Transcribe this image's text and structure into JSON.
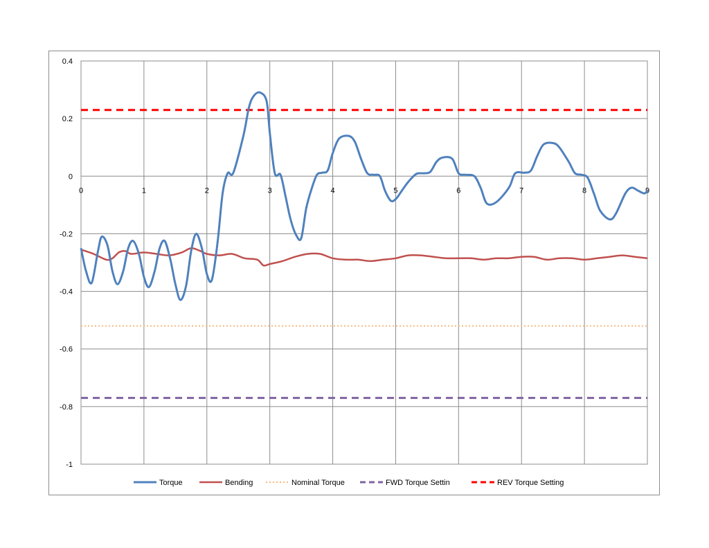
{
  "chart_data": {
    "type": "line",
    "title": "",
    "xlabel": "",
    "ylabel": "",
    "xlim": [
      0,
      9
    ],
    "ylim": [
      -1,
      0.4
    ],
    "x_ticks": [
      "0",
      "1",
      "2",
      "3",
      "4",
      "5",
      "6",
      "7",
      "8",
      "9"
    ],
    "y_ticks": [
      "0.4",
      "0.2",
      "0",
      "-0.2",
      "-0.4",
      "-0.6",
      "-0.8",
      "-1"
    ],
    "grid": true,
    "legend_position": "bottom",
    "series": [
      {
        "name": "Torque",
        "color": "#4f81bd",
        "style": "solid",
        "x": [
          0,
          0.08,
          0.17,
          0.27,
          0.33,
          0.42,
          0.5,
          0.58,
          0.67,
          0.75,
          0.83,
          0.92,
          1.0,
          1.08,
          1.17,
          1.25,
          1.33,
          1.42,
          1.5,
          1.58,
          1.67,
          1.75,
          1.83,
          1.92,
          2.0,
          2.08,
          2.17,
          2.25,
          2.33,
          2.42,
          2.58,
          2.67,
          2.75,
          2.85,
          2.95,
          3.0,
          3.08,
          3.17,
          3.25,
          3.33,
          3.42,
          3.5,
          3.58,
          3.67,
          3.75,
          3.83,
          3.92,
          4.0,
          4.1,
          4.25,
          4.35,
          4.45,
          4.55,
          4.65,
          4.75,
          4.83,
          4.92,
          5.0,
          5.1,
          5.2,
          5.33,
          5.45,
          5.55,
          5.65,
          5.75,
          5.9,
          6.0,
          6.1,
          6.25,
          6.35,
          6.45,
          6.6,
          6.8,
          6.9,
          7.05,
          7.15,
          7.25,
          7.35,
          7.5,
          7.6,
          7.75,
          7.85,
          7.95,
          8.05,
          8.15,
          8.25,
          8.4,
          8.5,
          8.65,
          8.75,
          8.85,
          8.95,
          9.0
        ],
        "y": [
          -0.25,
          -0.33,
          -0.37,
          -0.26,
          -0.21,
          -0.24,
          -0.33,
          -0.375,
          -0.33,
          -0.25,
          -0.225,
          -0.27,
          -0.35,
          -0.385,
          -0.33,
          -0.25,
          -0.225,
          -0.29,
          -0.375,
          -0.43,
          -0.38,
          -0.26,
          -0.2,
          -0.25,
          -0.34,
          -0.36,
          -0.23,
          -0.06,
          0.01,
          0.012,
          0.14,
          0.24,
          0.28,
          0.29,
          0.26,
          0.15,
          0.01,
          0.005,
          -0.07,
          -0.15,
          -0.205,
          -0.215,
          -0.11,
          -0.04,
          0.005,
          0.012,
          0.02,
          0.08,
          0.13,
          0.14,
          0.12,
          0.06,
          0.01,
          0.005,
          0.0,
          -0.05,
          -0.085,
          -0.08,
          -0.05,
          -0.02,
          0.008,
          0.01,
          0.015,
          0.05,
          0.065,
          0.06,
          0.01,
          0.005,
          0.0,
          -0.04,
          -0.095,
          -0.09,
          -0.04,
          0.01,
          0.012,
          0.02,
          0.07,
          0.11,
          0.115,
          0.1,
          0.05,
          0.01,
          0.005,
          -0.005,
          -0.06,
          -0.12,
          -0.15,
          -0.13,
          -0.06,
          -0.04,
          -0.05,
          -0.06,
          -0.05
        ]
      },
      {
        "name": "Bending",
        "color": "#c0504d",
        "style": "solid",
        "x": [
          0,
          0.2,
          0.4,
          0.5,
          0.6,
          0.7,
          0.8,
          1.0,
          1.2,
          1.4,
          1.6,
          1.75,
          1.9,
          2.0,
          2.2,
          2.4,
          2.6,
          2.8,
          2.9,
          3.0,
          3.2,
          3.4,
          3.6,
          3.8,
          4.0,
          4.2,
          4.4,
          4.6,
          4.8,
          5.0,
          5.2,
          5.4,
          5.6,
          5.8,
          6.0,
          6.2,
          6.4,
          6.6,
          6.8,
          7.0,
          7.2,
          7.4,
          7.6,
          7.8,
          8.0,
          8.2,
          8.4,
          8.6,
          8.8,
          9.0
        ],
        "y": [
          -0.255,
          -0.27,
          -0.29,
          -0.285,
          -0.265,
          -0.26,
          -0.27,
          -0.265,
          -0.27,
          -0.275,
          -0.265,
          -0.25,
          -0.26,
          -0.27,
          -0.275,
          -0.27,
          -0.285,
          -0.29,
          -0.31,
          -0.305,
          -0.295,
          -0.28,
          -0.27,
          -0.27,
          -0.285,
          -0.29,
          -0.29,
          -0.295,
          -0.29,
          -0.285,
          -0.275,
          -0.275,
          -0.28,
          -0.285,
          -0.285,
          -0.285,
          -0.29,
          -0.285,
          -0.285,
          -0.28,
          -0.28,
          -0.29,
          -0.285,
          -0.285,
          -0.29,
          -0.285,
          -0.28,
          -0.275,
          -0.28,
          -0.285
        ]
      },
      {
        "name": "Nominal Torque",
        "color": "#f9b87b",
        "style": "dotted",
        "x": [
          0,
          9
        ],
        "y": [
          -0.52,
          -0.52
        ]
      },
      {
        "name": "FWD Torque Settin",
        "color": "#8064a2",
        "style": "dashed",
        "x": [
          0,
          9
        ],
        "y": [
          -0.77,
          -0.77
        ]
      },
      {
        "name": "REV Torque Setting",
        "color": "#ff0000",
        "style": "dashed",
        "x": [
          0,
          9
        ],
        "y": [
          0.23,
          0.23
        ]
      }
    ]
  }
}
